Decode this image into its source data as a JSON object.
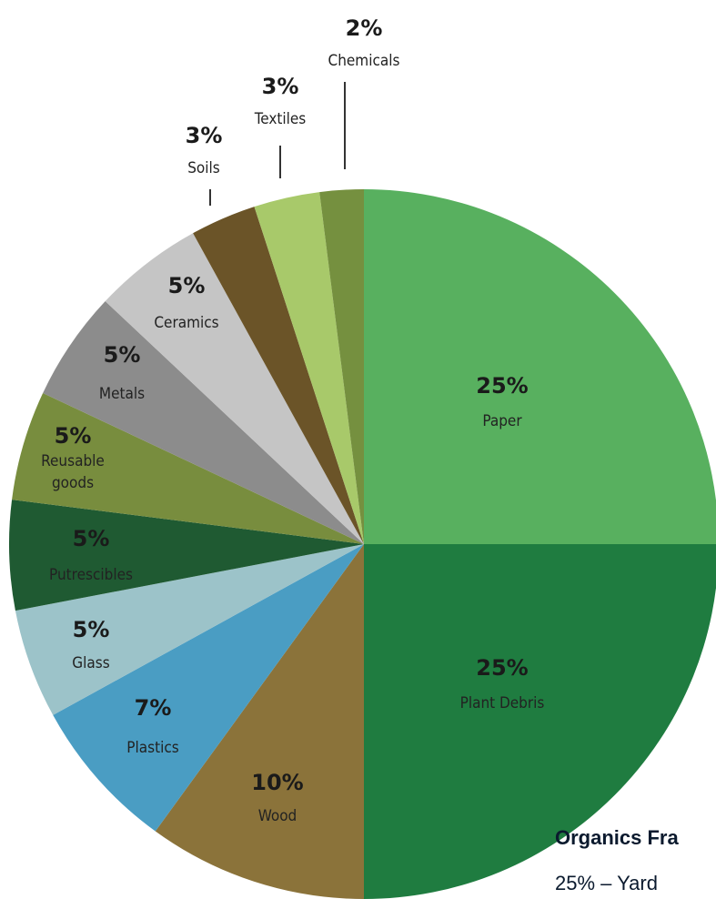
{
  "chart_data": {
    "type": "pie",
    "slices": [
      {
        "label": "Paper",
        "pct_label": "25%",
        "value": 25,
        "color": "#58b05f"
      },
      {
        "label": "Plant Debris",
        "pct_label": "25%",
        "value": 25,
        "color": "#1f7c40"
      },
      {
        "label": "Wood",
        "pct_label": "10%",
        "value": 10,
        "color": "#8b733a"
      },
      {
        "label": "Plastics",
        "pct_label": "7%",
        "value": 7,
        "color": "#4a9dc3"
      },
      {
        "label": "Glass",
        "pct_label": "5%",
        "value": 5,
        "color": "#9cc3c9"
      },
      {
        "label": "Putrescibles",
        "pct_label": "5%",
        "value": 5,
        "color": "#1f5a32"
      },
      {
        "label": "Reusable\ngoods",
        "pct_label": "5%",
        "value": 5,
        "color": "#788d3e"
      },
      {
        "label": "Metals",
        "pct_label": "5%",
        "value": 5,
        "color": "#8c8c8c"
      },
      {
        "label": "Ceramics",
        "pct_label": "5%",
        "value": 5,
        "color": "#c5c5c5"
      },
      {
        "label": "Soils",
        "pct_label": "3%",
        "value": 3,
        "color": "#6b5428"
      },
      {
        "label": "Textiles",
        "pct_label": "3%",
        "value": 3,
        "color": "#a8c96a"
      },
      {
        "label": "Chemicals",
        "pct_label": "2%",
        "value": 2,
        "color": "#75903f"
      }
    ]
  },
  "caption": {
    "title": "Organics Fra",
    "line2": "25% – Yard"
  }
}
